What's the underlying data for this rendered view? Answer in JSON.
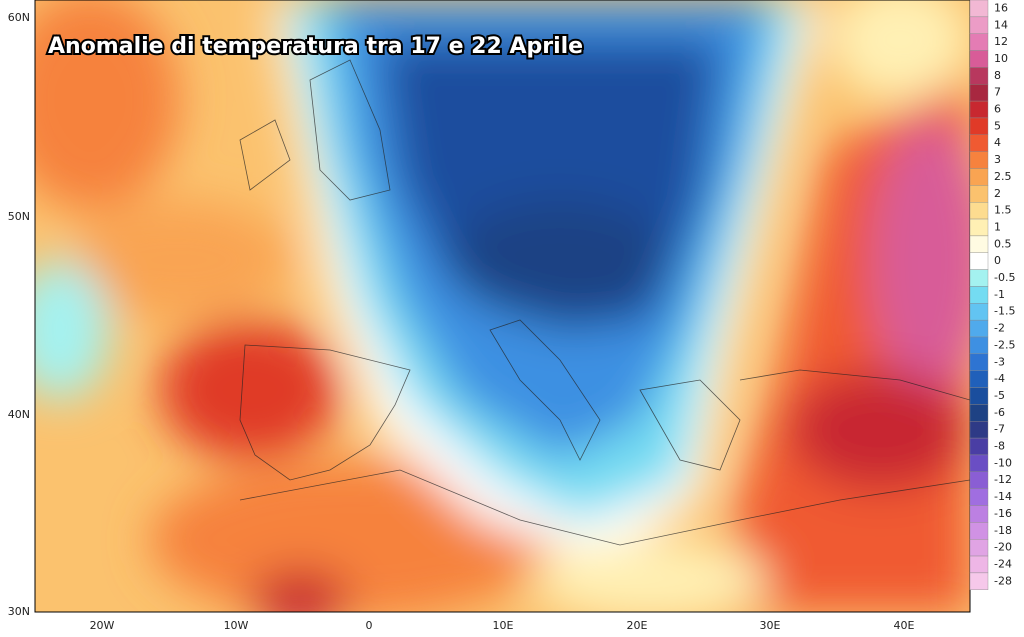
{
  "title": "Anomalie di temperatura tra 17 e 22 Aprile",
  "lat_labels": [
    "60N",
    "50N",
    "40N",
    "30N"
  ],
  "lon_labels": [
    "20W",
    "10W",
    "0",
    "10E",
    "20E",
    "30E",
    "40E"
  ],
  "legend": [
    {
      "label": "16",
      "color": "#f2b8d4"
    },
    {
      "label": "14",
      "color": "#ec9cc6"
    },
    {
      "label": "12",
      "color": "#e47cb4"
    },
    {
      "label": "10",
      "color": "#d85c98"
    },
    {
      "label": "8",
      "color": "#b8385e"
    },
    {
      "label": "7",
      "color": "#a82840"
    },
    {
      "label": "6",
      "color": "#c82830"
    },
    {
      "label": "5",
      "color": "#e03a28"
    },
    {
      "label": "4",
      "color": "#f05a32"
    },
    {
      "label": "3",
      "color": "#f6823e"
    },
    {
      "label": "2.5",
      "color": "#f9a452"
    },
    {
      "label": "2",
      "color": "#fbc26e"
    },
    {
      "label": "1.5",
      "color": "#fddc90"
    },
    {
      "label": "1",
      "color": "#fff0b4"
    },
    {
      "label": "0.5",
      "color": "#fffbe2"
    },
    {
      "label": "0",
      "color": "#ffffff"
    },
    {
      "label": "-0.5",
      "color": "#a4f2f0"
    },
    {
      "label": "-1",
      "color": "#74dcf2"
    },
    {
      "label": "-1.5",
      "color": "#62c4f2"
    },
    {
      "label": "-2",
      "color": "#50aaec"
    },
    {
      "label": "-2.5",
      "color": "#3e90e2"
    },
    {
      "label": "-3",
      "color": "#2e74d2"
    },
    {
      "label": "-4",
      "color": "#2060ba"
    },
    {
      "label": "-5",
      "color": "#1a4e9e"
    },
    {
      "label": "-6",
      "color": "#1e4284"
    },
    {
      "label": "-7",
      "color": "#2e3a86"
    },
    {
      "label": "-8",
      "color": "#4a3ea4"
    },
    {
      "label": "-10",
      "color": "#6a4ec4"
    },
    {
      "label": "-12",
      "color": "#8a5ed4"
    },
    {
      "label": "-14",
      "color": "#a06ee0"
    },
    {
      "label": "-16",
      "color": "#bc80e2"
    },
    {
      "label": "-18",
      "color": "#d092e4"
    },
    {
      "label": "-20",
      "color": "#e0a4e4"
    },
    {
      "label": "-24",
      "color": "#eeb6e6"
    },
    {
      "label": "-28",
      "color": "#f6c8ea"
    }
  ]
}
